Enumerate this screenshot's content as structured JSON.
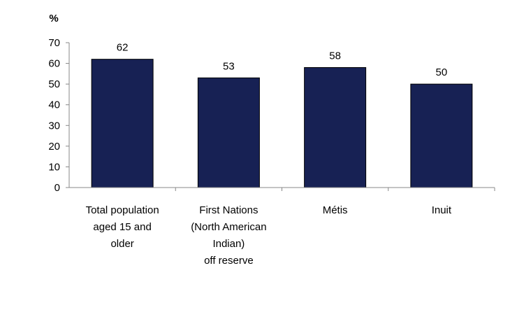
{
  "chart_data": {
    "type": "bar",
    "ylabel": "%",
    "ylim": [
      0,
      70
    ],
    "yticks": [
      0,
      10,
      20,
      30,
      40,
      50,
      60,
      70
    ],
    "categories": [
      [
        "Total population",
        "aged 15 and",
        "older"
      ],
      [
        "First Nations",
        "(North American",
        "Indian)",
        "off reserve"
      ],
      [
        "Métis"
      ],
      [
        "Inuit"
      ]
    ],
    "values": [
      62,
      53,
      58,
      50
    ],
    "data_labels": [
      "62",
      "53",
      "58",
      "50"
    ],
    "bar_color": "#172154",
    "grid": false
  }
}
